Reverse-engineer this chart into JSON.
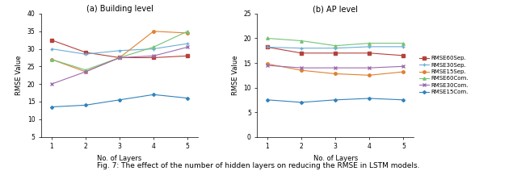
{
  "x": [
    1,
    2,
    3,
    4,
    5
  ],
  "building": {
    "RMSE60s": [
      32.5,
      29.0,
      27.5,
      27.5,
      28.0
    ],
    "RMSE30s": [
      30.0,
      28.5,
      29.5,
      30.0,
      31.5
    ],
    "RMSE15s": [
      27.0,
      23.5,
      27.5,
      35.0,
      34.5
    ],
    "RMSE60Com": [
      27.0,
      24.0,
      27.5,
      30.5,
      35.0
    ],
    "RMSE30Com": [
      20.0,
      23.5,
      27.5,
      28.0,
      30.5
    ],
    "RMSE15Com": [
      13.5,
      14.0,
      15.5,
      17.0,
      16.0
    ]
  },
  "ap": {
    "RMSE60s": [
      18.2,
      17.0,
      17.0,
      17.0,
      16.5
    ],
    "RMSE30s": [
      18.2,
      18.0,
      18.0,
      18.3,
      18.3
    ],
    "RMSE15s": [
      14.8,
      13.5,
      12.8,
      12.5,
      13.2
    ],
    "RMSE60Com": [
      20.0,
      19.5,
      18.5,
      19.0,
      19.0
    ],
    "RMSE30Com": [
      14.5,
      14.0,
      14.0,
      14.0,
      14.3
    ],
    "RMSE15Com": [
      7.5,
      7.0,
      7.5,
      7.8,
      7.5
    ]
  },
  "colors": {
    "RMSE60s": "#b5413b",
    "RMSE30s": "#6baed6",
    "RMSE15s": "#e08030",
    "RMSE60Com": "#74c476",
    "RMSE30Com": "#9e6baf",
    "RMSE15Com": "#3182bd"
  },
  "legend_labels": [
    "RMSE60Sep.",
    "RMSE30Sep.",
    "RMSE15Sep.",
    "RMSE60Com.",
    "RMSE30Com.",
    "RMSE15Com."
  ],
  "xlabel": "No. of Layers",
  "ylabel": "RMSE Value",
  "building_ylim": [
    5,
    40
  ],
  "building_yticks": [
    5,
    10,
    15,
    20,
    25,
    30,
    35,
    40
  ],
  "ap_ylim": [
    0,
    25
  ],
  "ap_yticks": [
    0,
    5,
    10,
    15,
    20,
    25
  ],
  "subtitle_a": "(a) Building level",
  "subtitle_b": "(b) AP level",
  "caption": "Fig. 7: The effect of the number of hidden layers on reducing the RMSE in LSTM models.",
  "caption_fontsize": 6.5,
  "subtitle_fontsize": 7,
  "axis_label_fontsize": 6,
  "tick_fontsize": 5.5,
  "legend_fontsize": 5.0
}
